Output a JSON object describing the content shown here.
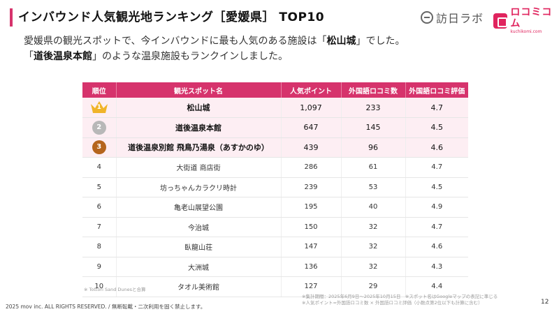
{
  "header": {
    "title": "インバウンド人気観光地ランキング［愛媛県］ TOP10",
    "logo_houjin": "訪日ラボ",
    "logo_kuchikomi": "ロコミコム",
    "logo_kuchikomi_sub": "kuchikomi.com"
  },
  "lead": {
    "line1_prefix": "愛媛県の観光スポットで、今インバウンドに最も人気のある施設は「",
    "line1_highlight": "松山城",
    "line1_suffix": "」でした。",
    "line2_prefix": "「",
    "line2_highlight": "道後温泉本館",
    "line2_suffix": "」のような温泉施設もランクインしました。"
  },
  "table": {
    "headers": [
      "順位",
      "観光スポット名",
      "人気ポイント",
      "外国語ロコミ数",
      "外国語ロコミ評価"
    ],
    "rows": [
      {
        "rank": "1",
        "spot": "松山城",
        "points": "1,097",
        "count": "233",
        "rating": "4.7"
      },
      {
        "rank": "2",
        "spot": "道後温泉本館",
        "points": "647",
        "count": "145",
        "rating": "4.5"
      },
      {
        "rank": "3",
        "spot": "道後温泉別館 飛鳥乃湯泉（あすかのゆ）",
        "points": "439",
        "count": "96",
        "rating": "4.6"
      },
      {
        "rank": "4",
        "spot": "大街道 商店街",
        "points": "286",
        "count": "61",
        "rating": "4.7"
      },
      {
        "rank": "5",
        "spot": "坊っちゃんカラクリ時計",
        "points": "239",
        "count": "53",
        "rating": "4.5"
      },
      {
        "rank": "6",
        "spot": "亀老山展望公園",
        "points": "195",
        "count": "40",
        "rating": "4.9"
      },
      {
        "rank": "7",
        "spot": "今治城",
        "points": "150",
        "count": "32",
        "rating": "4.7"
      },
      {
        "rank": "8",
        "spot": "臥龍山荘",
        "points": "147",
        "count": "32",
        "rating": "4.6"
      },
      {
        "rank": "9",
        "spot": "大洲城",
        "points": "136",
        "count": "32",
        "rating": "4.3"
      },
      {
        "rank": "10",
        "spot": "タオル美術館",
        "points": "127",
        "count": "29",
        "rating": "4.4"
      }
    ]
  },
  "notes": {
    "left": "※ Tottori Sand Dunesと合算",
    "right_line1": "※集計期間：2025年6月9日〜2025年10月15日　※スポット名はGoogleマップの表記に準じる",
    "right_line2": "※人気ポイント=外国語ロコミ数 × 外国語ロコミ評価（小数点第2位以下も計算に含む）"
  },
  "footer": {
    "copyright": "2025 mov inc. ALL RIGHTS RESERVED. / 無断転載・二次利用を固く禁止します。",
    "page": "12"
  },
  "colors": {
    "accent": "#d6336c",
    "row_highlight": "#fdeef3",
    "gold": "#f0b429",
    "silver": "#b8b8b8",
    "bronze": "#b5651d"
  }
}
